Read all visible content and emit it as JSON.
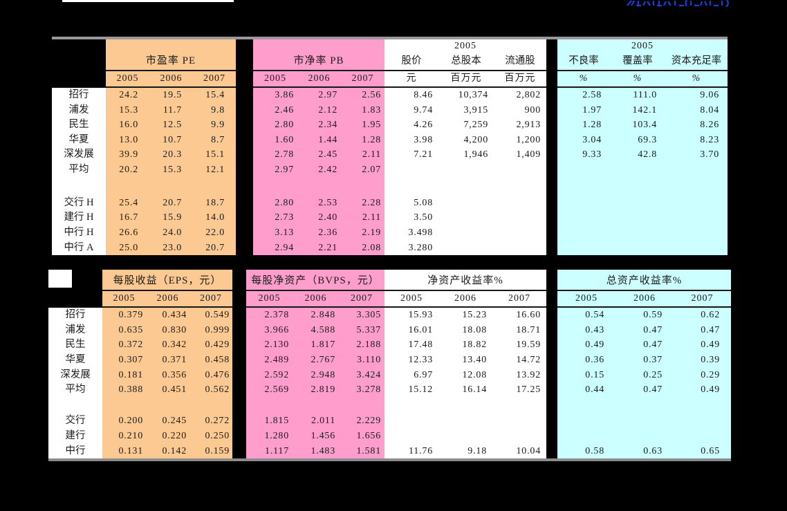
{
  "colors": {
    "page_bg": "#000000",
    "accent_orange": "#FBC991",
    "accent_pink": "#FF9ECD",
    "accent_cyan": "#CCFFFF",
    "table_bg": "#FFFFFF",
    "gray_border": "#9B979B",
    "rule_line": "#151515",
    "clipped_text_blue": "#1B3FD4"
  },
  "table1": {
    "row_labels": [
      "招行",
      "浦发",
      "民生",
      "华夏",
      "深发展",
      "平均",
      "交行 H",
      "建行 H",
      "中行 H",
      "中行 A"
    ],
    "groups": [
      {
        "id": "pe",
        "title": "市盈率 PE",
        "bg": "orange",
        "sub": [
          "2005",
          "2006",
          "2007"
        ],
        "rows": [
          [
            "24.2",
            "19.5",
            "15.4"
          ],
          [
            "15.3",
            "11.7",
            "9.8"
          ],
          [
            "16.0",
            "12.5",
            "9.9"
          ],
          [
            "13.0",
            "10.7",
            "8.7"
          ],
          [
            "39.9",
            "20.3",
            "15.1"
          ],
          [
            "20.2",
            "15.3",
            "12.1"
          ],
          [
            "25.4",
            "20.7",
            "18.7"
          ],
          [
            "16.7",
            "15.9",
            "14.0"
          ],
          [
            "26.6",
            "24.0",
            "22.0"
          ],
          [
            "25.0",
            "23.0",
            "20.7"
          ]
        ]
      },
      {
        "id": "pb",
        "title": "市净率 PB",
        "bg": "pink",
        "sub": [
          "2005",
          "2006",
          "2007"
        ],
        "rows": [
          [
            "3.86",
            "2.97",
            "2.56"
          ],
          [
            "2.46",
            "2.12",
            "1.83"
          ],
          [
            "2.80",
            "2.34",
            "1.95"
          ],
          [
            "1.60",
            "1.44",
            "1.28"
          ],
          [
            "2.78",
            "2.45",
            "2.11"
          ],
          [
            "2.97",
            "2.42",
            "2.07"
          ],
          [
            "2.80",
            "2.53",
            "2.28"
          ],
          [
            "2.73",
            "2.40",
            "2.11"
          ],
          [
            "3.13",
            "2.36",
            "2.19"
          ],
          [
            "2.94",
            "2.21",
            "2.08"
          ]
        ]
      },
      {
        "id": "price",
        "title": "2005",
        "bg": "white",
        "names": [
          "股价",
          "总股本",
          "流通股"
        ],
        "sub": [
          "元",
          "百万元",
          "百万元"
        ],
        "rows": [
          [
            "8.46",
            "10,374",
            "2,802"
          ],
          [
            "9.74",
            "3,915",
            "900"
          ],
          [
            "4.26",
            "7,259",
            "2,913"
          ],
          [
            "3.98",
            "4,200",
            "1,200"
          ],
          [
            "7.21",
            "1,946",
            "1,409"
          ],
          [
            "",
            "",
            ""
          ],
          [
            "5.08",
            "",
            ""
          ],
          [
            "3.50",
            "",
            ""
          ],
          [
            "3.498",
            "",
            ""
          ],
          [
            "3.280",
            "",
            ""
          ]
        ]
      },
      {
        "id": "quality",
        "title": "2005",
        "bg": "cyan",
        "names": [
          "不良率",
          "覆盖率",
          "资本充足率"
        ],
        "sub": [
          "%",
          "%",
          "%"
        ],
        "rows": [
          [
            "2.58",
            "111.0",
            "9.06"
          ],
          [
            "1.97",
            "142.1",
            "8.04"
          ],
          [
            "1.28",
            "103.4",
            "8.26"
          ],
          [
            "3.04",
            "69.3",
            "8.23"
          ],
          [
            "9.33",
            "42.8",
            "3.70"
          ],
          [
            "",
            "",
            ""
          ],
          [
            "",
            "",
            ""
          ],
          [
            "",
            "",
            ""
          ],
          [
            "",
            "",
            ""
          ],
          [
            "",
            "",
            ""
          ]
        ]
      }
    ]
  },
  "table2": {
    "row_labels": [
      "招行",
      "浦发",
      "民生",
      "华夏",
      "深发展",
      "平均",
      "交行",
      "建行",
      "中行"
    ],
    "groups": [
      {
        "id": "eps",
        "title": "每股收益（EPS，元）",
        "bg": "orange",
        "sub": [
          "2005",
          "2006",
          "2007"
        ],
        "rows": [
          [
            "0.379",
            "0.434",
            "0.549"
          ],
          [
            "0.635",
            "0.830",
            "0.999"
          ],
          [
            "0.372",
            "0.342",
            "0.429"
          ],
          [
            "0.307",
            "0.371",
            "0.458"
          ],
          [
            "0.181",
            "0.356",
            "0.476"
          ],
          [
            "0.388",
            "0.451",
            "0.562"
          ],
          [
            "0.200",
            "0.245",
            "0.272"
          ],
          [
            "0.210",
            "0.220",
            "0.250"
          ],
          [
            "0.131",
            "0.142",
            "0.159"
          ]
        ]
      },
      {
        "id": "bvps",
        "title": "每股净资产（BVPS，元）",
        "bg": "pink",
        "sub": [
          "2005",
          "2006",
          "2007"
        ],
        "rows": [
          [
            "2.378",
            "2.848",
            "3.305"
          ],
          [
            "3.966",
            "4.588",
            "5.337"
          ],
          [
            "2.130",
            "1.817",
            "2.188"
          ],
          [
            "2.489",
            "2.767",
            "3.110"
          ],
          [
            "2.592",
            "2.948",
            "3.424"
          ],
          [
            "2.569",
            "2.819",
            "3.278"
          ],
          [
            "1.815",
            "2.011",
            "2.229"
          ],
          [
            "1.280",
            "1.456",
            "1.656"
          ],
          [
            "1.117",
            "1.483",
            "1.581"
          ]
        ]
      },
      {
        "id": "roe",
        "title": "净资产收益率%",
        "bg": "white",
        "sub": [
          "2005",
          "2006",
          "2007"
        ],
        "rows": [
          [
            "15.93",
            "15.23",
            "16.60"
          ],
          [
            "16.01",
            "18.08",
            "18.71"
          ],
          [
            "17.48",
            "18.82",
            "19.59"
          ],
          [
            "12.33",
            "13.40",
            "14.72"
          ],
          [
            "6.97",
            "12.08",
            "13.92"
          ],
          [
            "15.12",
            "16.14",
            "17.25"
          ],
          [
            "",
            "",
            ""
          ],
          [
            "",
            "",
            ""
          ],
          [
            "11.76",
            "9.18",
            "10.04"
          ]
        ]
      },
      {
        "id": "roa",
        "title": "总资产收益率%",
        "bg": "cyan",
        "sub": [
          "2005",
          "2006",
          "2007"
        ],
        "rows": [
          [
            "0.54",
            "0.59",
            "0.62"
          ],
          [
            "0.43",
            "0.47",
            "0.47"
          ],
          [
            "0.49",
            "0.47",
            "0.49"
          ],
          [
            "0.36",
            "0.37",
            "0.39"
          ],
          [
            "0.15",
            "0.25",
            "0.29"
          ],
          [
            "0.44",
            "0.47",
            "0.49"
          ],
          [
            "",
            "",
            ""
          ],
          [
            "",
            "",
            ""
          ],
          [
            "0.58",
            "0.63",
            "0.65"
          ]
        ]
      }
    ]
  }
}
